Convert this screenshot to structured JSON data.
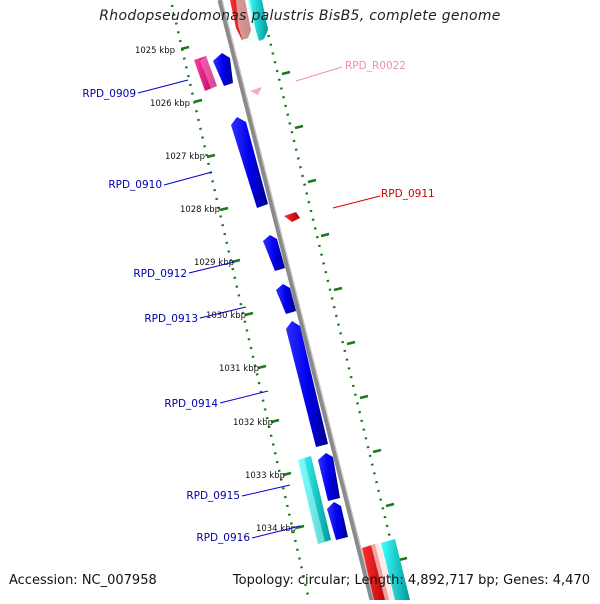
{
  "title": "Rhodopseudomonas palustris BisB5, complete genome",
  "footer": {
    "accession": "Accession: NC_007958",
    "summary": "Topology: circular; Length: 4,892,717 bp; Genes: 4,470"
  },
  "colors": {
    "backbone": "#8a8a8a",
    "ruler": "#1a7a1a",
    "gene_blue": "#0000ee",
    "gene_magenta": "#e0157f",
    "gene_red": "#ee0000",
    "gene_cyan": "#00dddd",
    "rna_pink": "#f0a0c8"
  },
  "ruler_ticks": [
    {
      "label": "1025 kbp",
      "kbp": 1025
    },
    {
      "label": "1026 kbp",
      "kbp": 1026
    },
    {
      "label": "1027 kbp",
      "kbp": 1027
    },
    {
      "label": "1028 kbp",
      "kbp": 1028
    },
    {
      "label": "1029 kbp",
      "kbp": 1029
    },
    {
      "label": "1030 kbp",
      "kbp": 1030
    },
    {
      "label": "1031 kbp",
      "kbp": 1031
    },
    {
      "label": "1032 kbp",
      "kbp": 1032
    },
    {
      "label": "1033 kbp",
      "kbp": 1033
    },
    {
      "label": "1034 kbp",
      "kbp": 1034
    }
  ],
  "gene_labels": {
    "rpd_0909": "RPD_0909",
    "rpd_r0022": "RPD_R0022",
    "rpd_0910": "RPD_0910",
    "rpd_0911": "RPD_0911",
    "rpd_0912": "RPD_0912",
    "rpd_0913": "RPD_0913",
    "rpd_0914": "RPD_0914",
    "rpd_0915": "RPD_0915",
    "rpd_0916": "RPD_0916"
  }
}
